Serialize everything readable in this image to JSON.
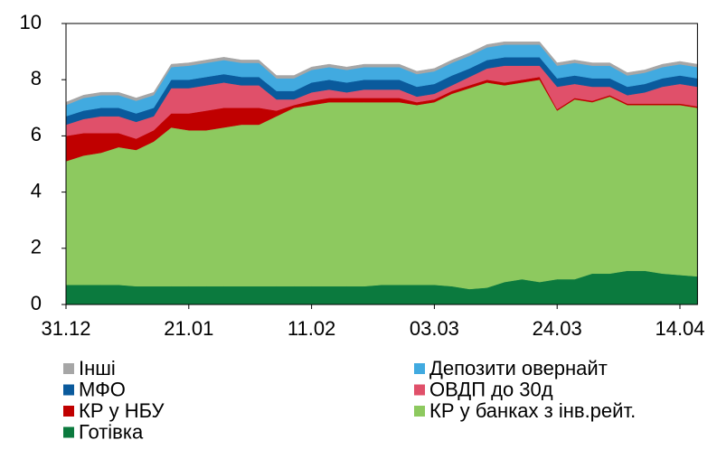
{
  "chart_data": {
    "type": "stacked_area",
    "categories": [
      "31.12",
      null,
      null,
      null,
      null,
      null,
      null,
      "21.01",
      null,
      null,
      null,
      null,
      null,
      null,
      "11.02",
      null,
      null,
      null,
      null,
      null,
      null,
      "03.03",
      null,
      null,
      null,
      null,
      null,
      null,
      "24.03",
      null,
      null,
      null,
      null,
      null,
      null,
      "14.04",
      null
    ],
    "series": [
      {
        "name": "Готівка",
        "color": "#0b7a3e",
        "values": [
          0.7,
          0.7,
          0.7,
          0.7,
          0.65,
          0.65,
          0.65,
          0.65,
          0.65,
          0.65,
          0.65,
          0.65,
          0.65,
          0.65,
          0.65,
          0.65,
          0.65,
          0.65,
          0.7,
          0.7,
          0.7,
          0.7,
          0.65,
          0.55,
          0.6,
          0.8,
          0.9,
          0.8,
          0.9,
          0.9,
          1.1,
          1.1,
          1.2,
          1.2,
          1.1,
          1.05,
          1.0
        ]
      },
      {
        "name": "КР у банках з інв.рейт.",
        "color": "#8dc95f",
        "values": [
          4.4,
          4.6,
          4.7,
          4.9,
          4.85,
          5.15,
          5.65,
          5.55,
          5.55,
          5.65,
          5.75,
          5.75,
          6.05,
          6.35,
          6.45,
          6.55,
          6.55,
          6.55,
          6.5,
          6.5,
          6.4,
          6.5,
          6.85,
          7.15,
          7.3,
          7.0,
          7.0,
          7.2,
          6.0,
          6.4,
          6.1,
          6.3,
          5.9,
          5.9,
          6.0,
          6.05,
          6.0
        ]
      },
      {
        "name": "КР у НБУ",
        "color": "#c00000",
        "values": [
          0.9,
          0.8,
          0.7,
          0.5,
          0.4,
          0.4,
          0.5,
          0.6,
          0.7,
          0.7,
          0.6,
          0.6,
          0.2,
          0.1,
          0.15,
          0.15,
          0.15,
          0.15,
          0.15,
          0.15,
          0.1,
          0.1,
          0.1,
          0.1,
          0.1,
          0.1,
          0.1,
          0.1,
          0.05,
          0.05,
          0.05,
          0.05,
          0.05,
          0.05,
          0.05,
          0.05,
          0.05
        ]
      },
      {
        "name": "ОВДП до 30д",
        "color": "#e0506a",
        "values": [
          0.4,
          0.5,
          0.6,
          0.6,
          0.6,
          0.5,
          0.9,
          0.9,
          0.9,
          0.9,
          0.8,
          0.8,
          0.4,
          0.2,
          0.3,
          0.3,
          0.2,
          0.3,
          0.3,
          0.3,
          0.2,
          0.2,
          0.2,
          0.3,
          0.4,
          0.6,
          0.5,
          0.4,
          0.8,
          0.5,
          0.5,
          0.3,
          0.3,
          0.4,
          0.6,
          0.7,
          0.7
        ]
      },
      {
        "name": "МФО",
        "color": "#0a5a9c",
        "values": [
          0.3,
          0.3,
          0.3,
          0.3,
          0.3,
          0.3,
          0.3,
          0.3,
          0.3,
          0.3,
          0.3,
          0.3,
          0.3,
          0.3,
          0.35,
          0.35,
          0.35,
          0.35,
          0.35,
          0.35,
          0.35,
          0.35,
          0.35,
          0.3,
          0.3,
          0.3,
          0.3,
          0.3,
          0.3,
          0.3,
          0.3,
          0.3,
          0.3,
          0.3,
          0.3,
          0.3,
          0.3
        ]
      },
      {
        "name": "Депозити овернайт",
        "color": "#41aae0",
        "values": [
          0.4,
          0.45,
          0.45,
          0.45,
          0.45,
          0.45,
          0.45,
          0.5,
          0.5,
          0.5,
          0.5,
          0.5,
          0.45,
          0.45,
          0.45,
          0.45,
          0.45,
          0.45,
          0.45,
          0.45,
          0.45,
          0.45,
          0.45,
          0.45,
          0.45,
          0.45,
          0.45,
          0.45,
          0.45,
          0.45,
          0.45,
          0.45,
          0.4,
          0.4,
          0.4,
          0.4,
          0.4
        ]
      },
      {
        "name": "Інші",
        "color": "#a6a6a6",
        "values": [
          0.1,
          0.1,
          0.1,
          0.1,
          0.1,
          0.1,
          0.1,
          0.1,
          0.1,
          0.1,
          0.1,
          0.1,
          0.1,
          0.1,
          0.1,
          0.1,
          0.1,
          0.1,
          0.1,
          0.1,
          0.1,
          0.1,
          0.1,
          0.1,
          0.1,
          0.1,
          0.1,
          0.1,
          0.1,
          0.1,
          0.1,
          0.1,
          0.1,
          0.1,
          0.1,
          0.1,
          0.1
        ]
      }
    ],
    "ylim": [
      0,
      10
    ],
    "yticks": [
      0,
      2,
      4,
      6,
      8,
      10
    ]
  }
}
